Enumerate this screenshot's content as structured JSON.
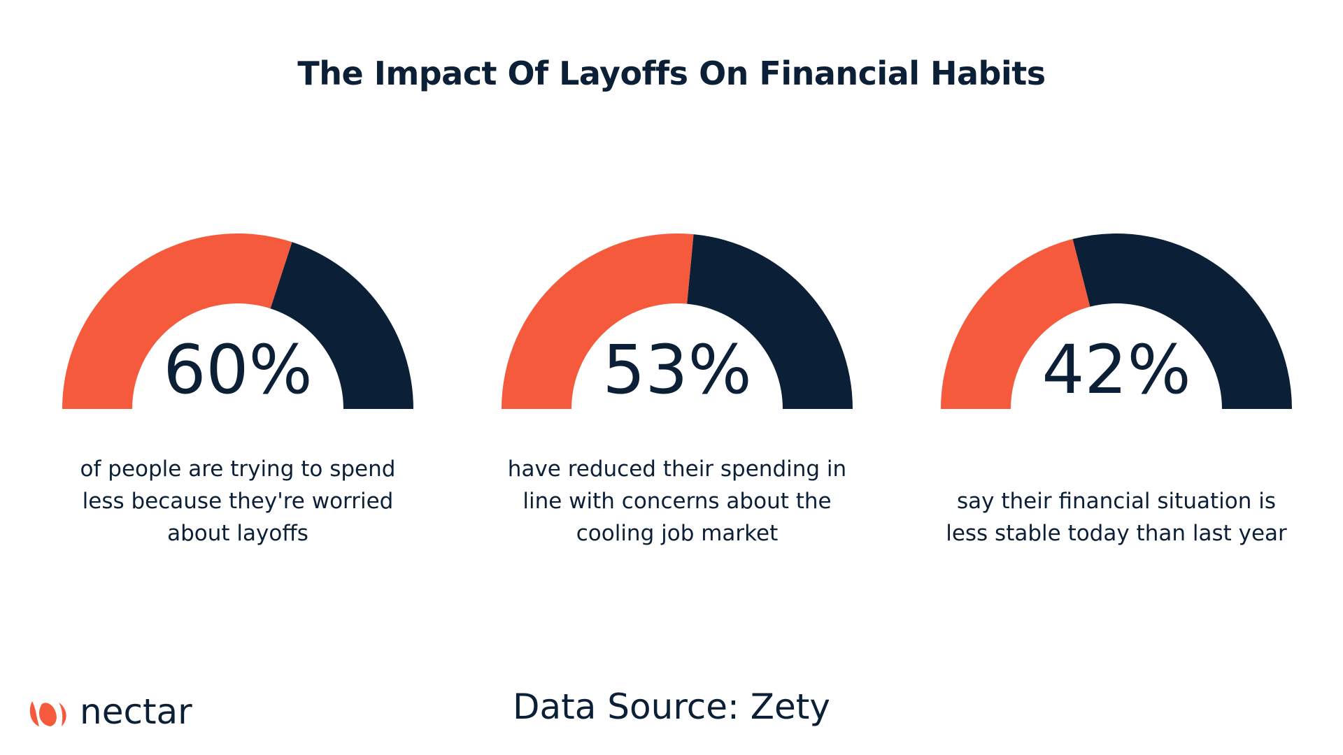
{
  "title": "The Impact Of Layoffs On Financial Habits",
  "colors": {
    "accent": "#f45a3b",
    "dark": "#0b1f36",
    "text": "#0b1f36"
  },
  "chart_data": {
    "type": "gauge",
    "title": "The Impact Of Layoffs On Financial Habits",
    "gauges": [
      {
        "value": 60,
        "label": "60%",
        "caption": "of people are trying to spend less because they're worried about layoffs"
      },
      {
        "value": 53,
        "label": "53%",
        "caption": "have reduced their spending in line with concerns about the cooling job market"
      },
      {
        "value": 42,
        "label": "42%",
        "caption": "say their financial situation is less stable today than last year"
      }
    ],
    "max": 100
  },
  "source": "Data Source: Zety",
  "logo": {
    "text": "nectar",
    "icon": "nectar-flower-icon"
  }
}
